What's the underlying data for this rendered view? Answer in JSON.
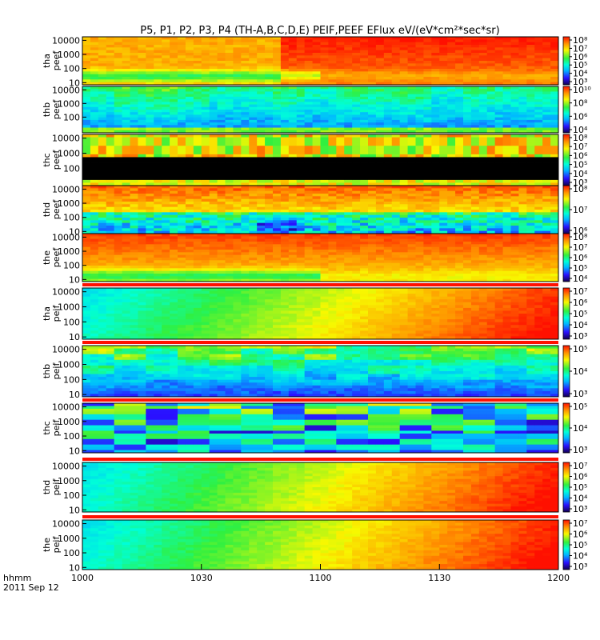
{
  "chart_data": {
    "type": "heatmap",
    "title": "P5, P1, P2, P3, P4 (TH-A,B,C,D,E) PEIF,PEEF EFlux eV/(eV*cm²*sec*sr)",
    "x_tick_labels": [
      "1000",
      "1030",
      "1100",
      "1130",
      "1200"
    ],
    "x_label_line1": "hhmm",
    "x_label_line2": "2011 Sep 12",
    "panels": [
      {
        "label": "tha peef",
        "y_ticks": [
          "10000",
          "1000",
          "100",
          "10"
        ],
        "cb_ticks": [
          "10⁸",
          "10⁷",
          "10⁶",
          "10⁵",
          "10⁴",
          "10³"
        ]
      },
      {
        "label": "thb peef",
        "y_ticks": [
          "10000",
          "1000",
          "100"
        ],
        "cb_ticks": [
          "10¹⁰",
          "10⁸",
          "10⁶",
          "10⁴"
        ]
      },
      {
        "label": "thc peef",
        "y_ticks": [
          "10000",
          "1000",
          "100"
        ],
        "cb_ticks": [
          "10⁸",
          "10⁷",
          "10⁶",
          "10⁵",
          "10⁴",
          "10³"
        ]
      },
      {
        "label": "thd peef",
        "y_ticks": [
          "10000",
          "1000",
          "100",
          "10"
        ],
        "cb_ticks": [
          "10⁸",
          "10⁷",
          "10⁶"
        ]
      },
      {
        "label": "the peef",
        "y_ticks": [
          "10000",
          "1000",
          "100",
          "10"
        ],
        "cb_ticks": [
          "10⁸",
          "10⁷",
          "10⁶",
          "10⁵",
          "10⁴"
        ]
      },
      {
        "label": "tha peif",
        "y_ticks": [
          "10000",
          "1000",
          "100",
          "10"
        ],
        "cb_ticks": [
          "10⁷",
          "10⁶",
          "10⁵",
          "10⁴",
          "10³"
        ]
      },
      {
        "label": "thb peif",
        "y_ticks": [
          "10000",
          "1000",
          "100",
          "10"
        ],
        "cb_ticks": [
          "10⁵",
          "10⁴",
          "10³"
        ]
      },
      {
        "label": "thc peif",
        "y_ticks": [
          "10000",
          "1000",
          "100",
          "10"
        ],
        "cb_ticks": [
          "10⁵",
          "10⁴",
          "10³"
        ]
      },
      {
        "label": "thd peif",
        "y_ticks": [
          "10000",
          "1000",
          "100",
          "10"
        ],
        "cb_ticks": [
          "10⁷",
          "10⁶",
          "10⁵",
          "10⁴",
          "10³"
        ]
      },
      {
        "label": "the peif",
        "y_ticks": [
          "10000",
          "1000",
          "100",
          "10"
        ],
        "cb_ticks": [
          "10⁷",
          "10⁶",
          "10⁵",
          "10⁴",
          "10³"
        ]
      }
    ]
  }
}
